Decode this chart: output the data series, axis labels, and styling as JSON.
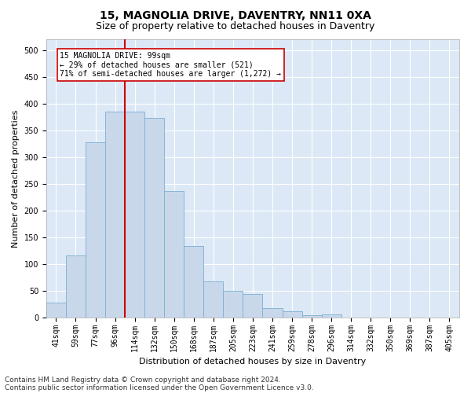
{
  "title1": "15, MAGNOLIA DRIVE, DAVENTRY, NN11 0XA",
  "title2": "Size of property relative to detached houses in Daventry",
  "xlabel": "Distribution of detached houses by size in Daventry",
  "ylabel": "Number of detached properties",
  "footer1": "Contains HM Land Registry data © Crown copyright and database right 2024.",
  "footer2": "Contains public sector information licensed under the Open Government Licence v3.0.",
  "bar_labels": [
    "41sqm",
    "59sqm",
    "77sqm",
    "96sqm",
    "114sqm",
    "132sqm",
    "150sqm",
    "168sqm",
    "187sqm",
    "205sqm",
    "223sqm",
    "241sqm",
    "259sqm",
    "278sqm",
    "296sqm",
    "314sqm",
    "332sqm",
    "350sqm",
    "369sqm",
    "387sqm",
    "405sqm"
  ],
  "bar_values": [
    28,
    116,
    328,
    385,
    385,
    373,
    237,
    133,
    68,
    50,
    44,
    17,
    11,
    4,
    5,
    0,
    0,
    0,
    0,
    0,
    0
  ],
  "bar_color": "#c8d8ea",
  "bar_edge_color": "#7aafd4",
  "vline_color": "#cc0000",
  "annotation_text": "15 MAGNOLIA DRIVE: 99sqm\n← 29% of detached houses are smaller (521)\n71% of semi-detached houses are larger (1,272) →",
  "annotation_box_color": "#ffffff",
  "annotation_box_edge": "#cc0000",
  "ylim": [
    0,
    520
  ],
  "yticks": [
    0,
    50,
    100,
    150,
    200,
    250,
    300,
    350,
    400,
    450,
    500
  ],
  "fig_bg": "#ffffff",
  "plot_bg": "#dce8f5",
  "grid_color": "#ffffff",
  "title1_fontsize": 10,
  "title2_fontsize": 9,
  "axis_label_fontsize": 8,
  "tick_fontsize": 7,
  "footer_fontsize": 6.5
}
